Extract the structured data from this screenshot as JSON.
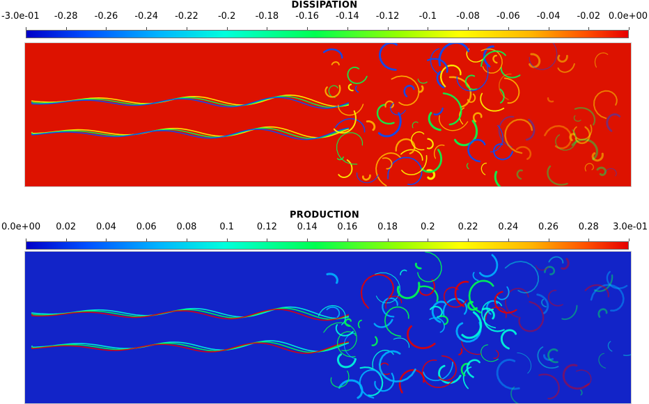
{
  "panels": [
    {
      "title": "DISSIPATION",
      "tick_labels": [
        "-3.0e-01",
        "-0.28",
        "-0.26",
        "-0.24",
        "-0.22",
        "-0.2",
        "-0.18",
        "-0.16",
        "-0.14",
        "-0.12",
        "-0.1",
        "-0.08",
        "-0.06",
        "-0.04",
        "-0.02",
        "0.0e+00"
      ],
      "range": [
        -0.3,
        0.0
      ],
      "colormap": "rainbow (blue to red)",
      "background_color": "#dd1200",
      "structure_colors": [
        "#ffff00",
        "#00ff50",
        "#0050ff",
        "#ffb400"
      ]
    },
    {
      "title": "PRODUCTION",
      "tick_labels": [
        "0.0e+00",
        "0.02",
        "0.04",
        "0.06",
        "0.08",
        "0.1",
        "0.12",
        "0.14",
        "0.16",
        "0.18",
        "0.2",
        "0.22",
        "0.24",
        "0.26",
        "0.28",
        "3.0e-01"
      ],
      "range": [
        0.0,
        0.3
      ],
      "colormap": "rainbow (blue to red)",
      "background_color": "#1224c8",
      "structure_colors": [
        "#00ffdc",
        "#00ff50",
        "#e60000",
        "#00b4ff"
      ]
    }
  ]
}
